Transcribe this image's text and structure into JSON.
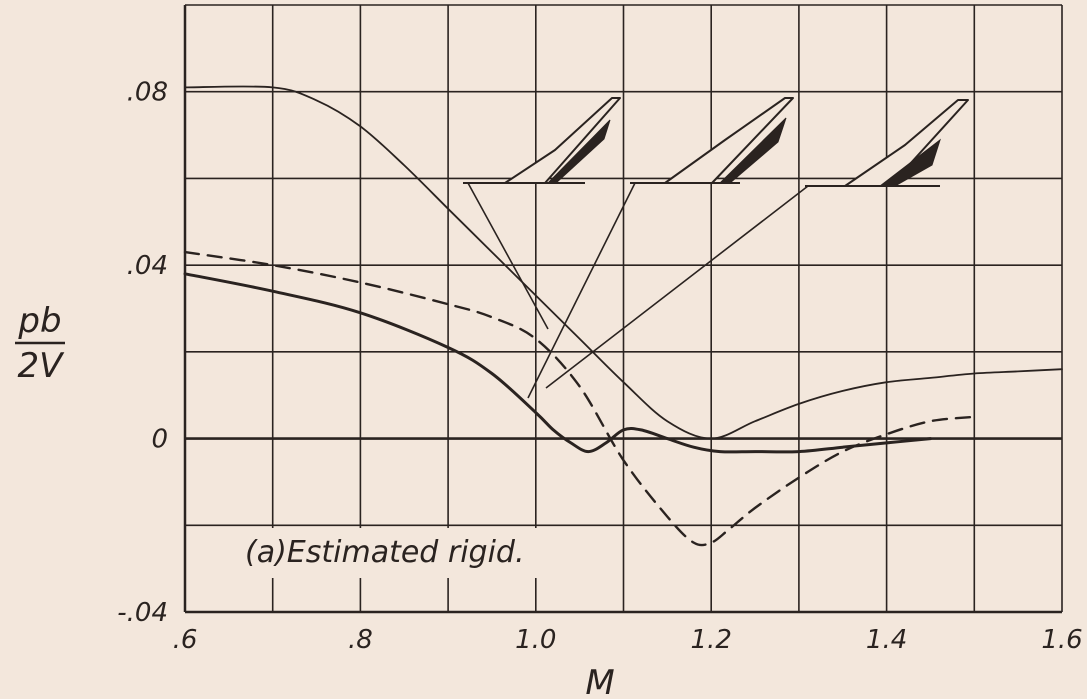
{
  "chart_data": {
    "type": "line",
    "title": "",
    "xlabel": "M",
    "ylabel_numerator": "pb",
    "ylabel_denominator": "2V",
    "xlim": [
      0.6,
      1.6
    ],
    "ylim": [
      -0.04,
      0.1
    ],
    "grid": true,
    "legend": "none",
    "annotation": "(a)Estimated rigid.",
    "x_ticks": [
      {
        "value": 0.6,
        "label": ".6"
      },
      {
        "value": 0.8,
        "label": ".8"
      },
      {
        "value": 1.0,
        "label": "1.0"
      },
      {
        "value": 1.2,
        "label": "1.2"
      },
      {
        "value": 1.4,
        "label": "1.4"
      },
      {
        "value": 1.6,
        "label": "1.6"
      }
    ],
    "y_ticks": [
      {
        "value": 0.08,
        "label": ".08"
      },
      {
        "value": 0.04,
        "label": ".04"
      },
      {
        "value": 0.0,
        "label": "0"
      },
      {
        "value": -0.04,
        "label": "-.04"
      }
    ],
    "series": [
      {
        "style": "solid-thin",
        "x": [
          0.6,
          0.7,
          0.75,
          0.8,
          0.85,
          0.9,
          0.95,
          1.0,
          1.05,
          1.1,
          1.15,
          1.2,
          1.25,
          1.3,
          1.35,
          1.4,
          1.45,
          1.5,
          1.55,
          1.6
        ],
        "y": [
          0.081,
          0.081,
          0.078,
          0.072,
          0.063,
          0.053,
          0.043,
          0.033,
          0.023,
          0.013,
          0.004,
          0.0,
          0.004,
          0.008,
          0.011,
          0.013,
          0.014,
          0.015,
          0.0155,
          0.016
        ]
      },
      {
        "style": "solid-thick",
        "x": [
          0.6,
          0.7,
          0.8,
          0.9,
          0.95,
          1.0,
          1.02,
          1.04,
          1.06,
          1.08,
          1.1,
          1.12,
          1.15,
          1.18,
          1.21,
          1.25,
          1.3,
          1.35,
          1.4,
          1.45
        ],
        "y": [
          0.038,
          0.034,
          0.029,
          0.021,
          0.015,
          0.006,
          0.002,
          -0.001,
          -0.003,
          -0.001,
          0.002,
          0.002,
          0.0,
          -0.002,
          -0.003,
          -0.003,
          -0.003,
          -0.002,
          -0.001,
          0.0
        ]
      },
      {
        "style": "dashed",
        "x": [
          0.6,
          0.7,
          0.8,
          0.9,
          0.95,
          1.0,
          1.05,
          1.1,
          1.15,
          1.18,
          1.2,
          1.22,
          1.25,
          1.3,
          1.35,
          1.4,
          1.45,
          1.5
        ],
        "y": [
          0.043,
          0.04,
          0.036,
          0.031,
          0.028,
          0.023,
          0.012,
          -0.005,
          -0.018,
          -0.024,
          -0.024,
          -0.021,
          -0.016,
          -0.009,
          -0.003,
          0.001,
          0.004,
          0.005
        ]
      }
    ]
  }
}
